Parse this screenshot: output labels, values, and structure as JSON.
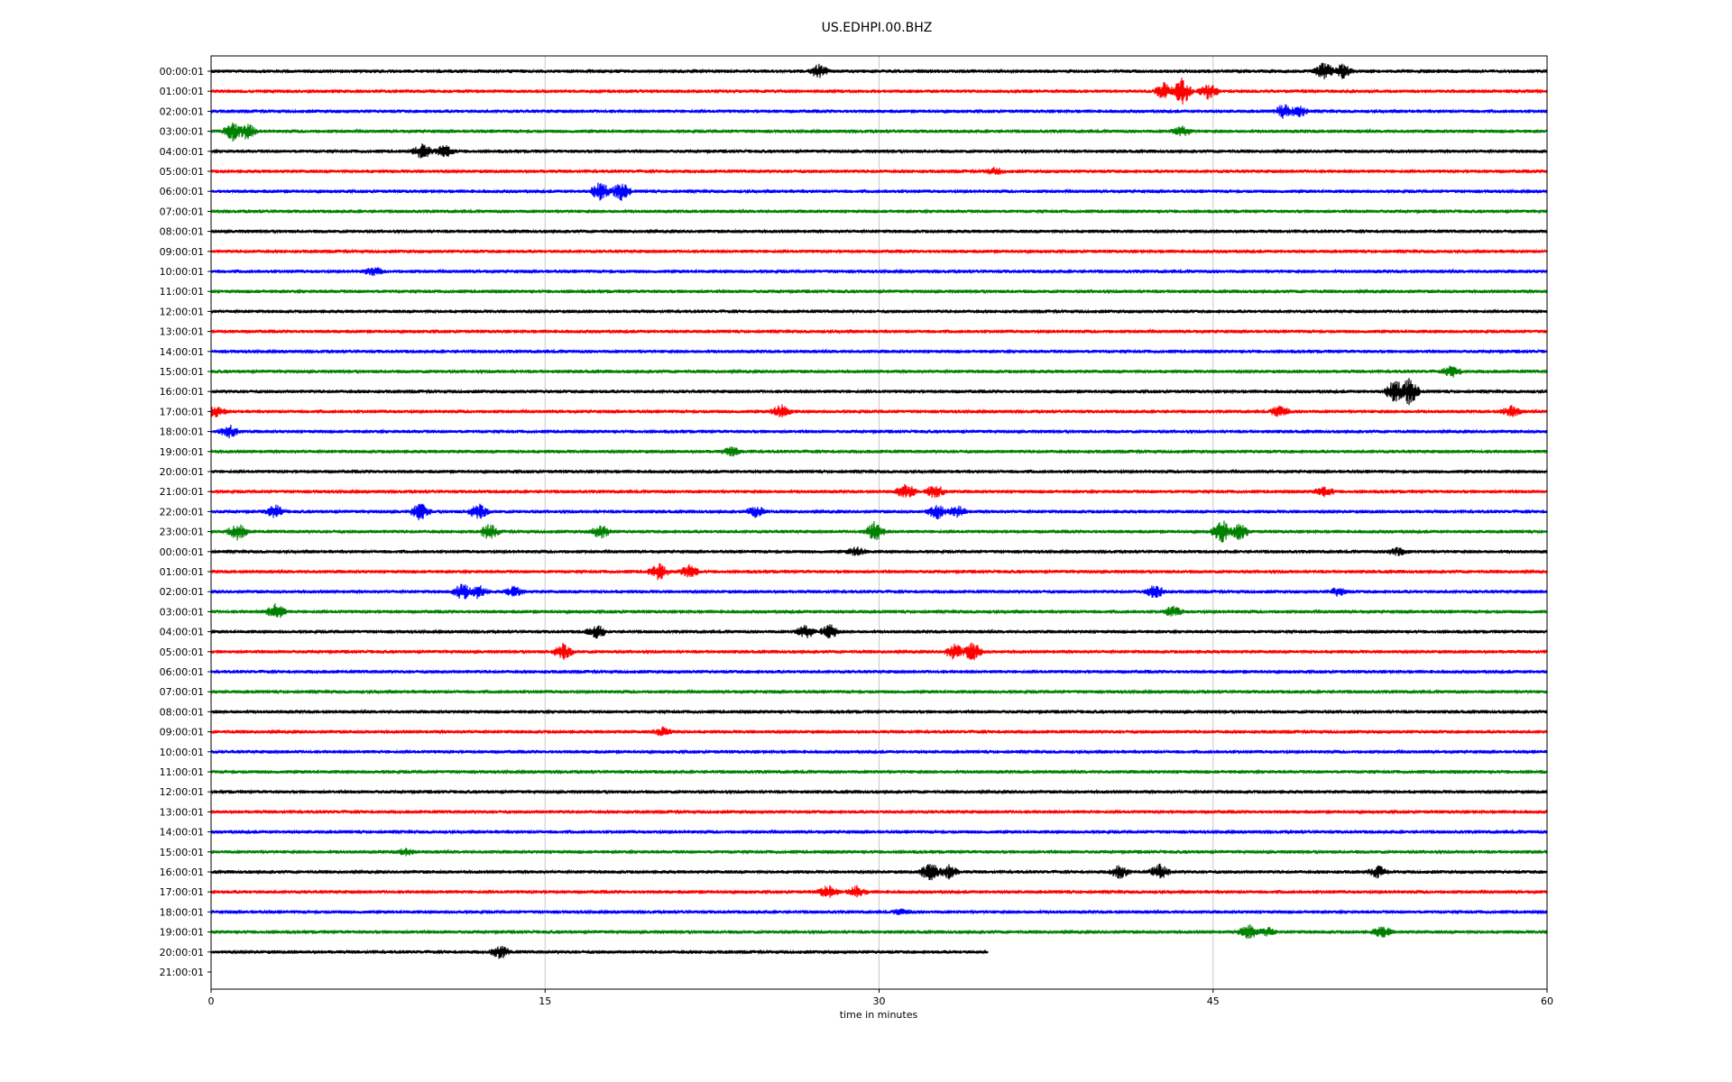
{
  "chart_data": {
    "type": "line",
    "title": "US.EDHPI.00.BHZ",
    "xlabel": "time in minutes",
    "xlim": [
      0,
      60
    ],
    "xticks": [
      "0",
      "15",
      "30",
      "45",
      "60"
    ],
    "xtick_values": [
      0,
      15,
      30,
      45,
      60
    ],
    "vertical_grid_minutes": [
      15,
      30,
      45
    ],
    "grid": "vertical only",
    "color_cycle": [
      "#000000",
      "#ff0000",
      "#0000ff",
      "#008000"
    ],
    "rows": [
      {
        "label": "00:00:01",
        "end_minute": 60,
        "events": [
          [
            27.3,
            1.6
          ],
          [
            50,
            2.2
          ],
          [
            50.8,
            1.8
          ]
        ]
      },
      {
        "label": "01:00:01",
        "end_minute": 60,
        "events": [
          [
            42.8,
            2.2
          ],
          [
            43.6,
            3.5
          ],
          [
            44.8,
            2.0
          ]
        ]
      },
      {
        "label": "02:00:01",
        "end_minute": 60,
        "events": [
          [
            48.2,
            1.8
          ],
          [
            48.8,
            1.5
          ]
        ]
      },
      {
        "label": "03:00:01",
        "end_minute": 60,
        "events": [
          [
            1.0,
            2.4
          ],
          [
            1.6,
            2.0
          ],
          [
            43.6,
            1.2
          ]
        ]
      },
      {
        "label": "04:00:01",
        "end_minute": 60,
        "events": [
          [
            9.5,
            1.8
          ],
          [
            10.5,
            1.6
          ]
        ]
      },
      {
        "label": "05:00:01",
        "end_minute": 60,
        "events": [
          [
            35.2,
            0.8
          ]
        ]
      },
      {
        "label": "06:00:01",
        "end_minute": 60,
        "events": [
          [
            17.5,
            2.4
          ],
          [
            18.4,
            2.2
          ]
        ]
      },
      {
        "label": "07:00:01",
        "end_minute": 60,
        "events": []
      },
      {
        "label": "08:00:01",
        "end_minute": 60,
        "events": []
      },
      {
        "label": "09:00:01",
        "end_minute": 60,
        "events": []
      },
      {
        "label": "10:00:01",
        "end_minute": 60,
        "events": [
          [
            7.3,
            1.0
          ]
        ]
      },
      {
        "label": "11:00:01",
        "end_minute": 60,
        "events": []
      },
      {
        "label": "12:00:01",
        "end_minute": 60,
        "events": []
      },
      {
        "label": "13:00:01",
        "end_minute": 60,
        "events": []
      },
      {
        "label": "14:00:01",
        "end_minute": 60,
        "events": []
      },
      {
        "label": "15:00:01",
        "end_minute": 60,
        "events": [
          [
            55.7,
            1.4
          ]
        ]
      },
      {
        "label": "16:00:01",
        "end_minute": 60,
        "events": [
          [
            53.2,
            3.2
          ],
          [
            53.8,
            3.5
          ]
        ]
      },
      {
        "label": "17:00:01",
        "end_minute": 60,
        "events": [
          [
            0.2,
            1.6
          ],
          [
            25.6,
            1.6
          ],
          [
            48.0,
            1.4
          ],
          [
            58.4,
            1.4
          ]
        ]
      },
      {
        "label": "18:00:01",
        "end_minute": 60,
        "events": [
          [
            0.8,
            1.6
          ]
        ]
      },
      {
        "label": "19:00:01",
        "end_minute": 60,
        "events": [
          [
            23.4,
            1.0
          ]
        ]
      },
      {
        "label": "20:00:01",
        "end_minute": 60,
        "events": []
      },
      {
        "label": "21:00:01",
        "end_minute": 60,
        "events": [
          [
            31.2,
            2.0
          ],
          [
            32.5,
            1.8
          ],
          [
            50.0,
            1.2
          ]
        ]
      },
      {
        "label": "22:00:01",
        "end_minute": 60,
        "events": [
          [
            2.9,
            1.6
          ],
          [
            9.4,
            2.2
          ],
          [
            12.0,
            2.0
          ],
          [
            24.5,
            1.4
          ],
          [
            32.6,
            1.8
          ],
          [
            33.5,
            1.4
          ]
        ]
      },
      {
        "label": "23:00:01",
        "end_minute": 60,
        "events": [
          [
            1.2,
            2.0
          ],
          [
            12.5,
            2.0
          ],
          [
            17.5,
            1.6
          ],
          [
            29.8,
            2.4
          ],
          [
            45.4,
            3.0
          ],
          [
            46.2,
            2.0
          ]
        ]
      },
      {
        "label": "00:00:01",
        "end_minute": 60,
        "events": [
          [
            29.0,
            1.0
          ],
          [
            53.3,
            1.0
          ]
        ]
      },
      {
        "label": "01:00:01",
        "end_minute": 60,
        "events": [
          [
            20.1,
            2.0
          ],
          [
            21.5,
            1.6
          ]
        ]
      },
      {
        "label": "02:00:01",
        "end_minute": 60,
        "events": [
          [
            11.3,
            2.0
          ],
          [
            12.0,
            1.6
          ],
          [
            13.6,
            1.2
          ],
          [
            42.4,
            1.6
          ],
          [
            50.6,
            1.0
          ]
        ]
      },
      {
        "label": "03:00:01",
        "end_minute": 60,
        "events": [
          [
            2.9,
            2.0
          ],
          [
            43.2,
            1.2
          ]
        ]
      },
      {
        "label": "04:00:01",
        "end_minute": 60,
        "events": [
          [
            17.3,
            1.8
          ],
          [
            26.7,
            1.6
          ],
          [
            27.8,
            1.8
          ]
        ]
      },
      {
        "label": "05:00:01",
        "end_minute": 60,
        "events": [
          [
            15.8,
            2.0
          ],
          [
            33.4,
            2.0
          ],
          [
            34.2,
            2.2
          ]
        ]
      },
      {
        "label": "06:00:01",
        "end_minute": 60,
        "events": []
      },
      {
        "label": "07:00:01",
        "end_minute": 60,
        "events": []
      },
      {
        "label": "08:00:01",
        "end_minute": 60,
        "events": []
      },
      {
        "label": "09:00:01",
        "end_minute": 60,
        "events": [
          [
            20.3,
            1.0
          ]
        ]
      },
      {
        "label": "10:00:01",
        "end_minute": 60,
        "events": []
      },
      {
        "label": "11:00:01",
        "end_minute": 60,
        "events": []
      },
      {
        "label": "12:00:01",
        "end_minute": 60,
        "events": []
      },
      {
        "label": "13:00:01",
        "end_minute": 60,
        "events": []
      },
      {
        "label": "14:00:01",
        "end_minute": 60,
        "events": []
      },
      {
        "label": "15:00:01",
        "end_minute": 60,
        "events": [
          [
            8.7,
            0.8
          ]
        ]
      },
      {
        "label": "16:00:01",
        "end_minute": 60,
        "events": [
          [
            32.3,
            2.4
          ],
          [
            33.1,
            1.8
          ],
          [
            40.8,
            1.6
          ],
          [
            42.6,
            1.8
          ],
          [
            52.4,
            1.4
          ]
        ]
      },
      {
        "label": "17:00:01",
        "end_minute": 60,
        "events": [
          [
            27.7,
            1.6
          ],
          [
            29.0,
            1.4
          ]
        ]
      },
      {
        "label": "18:00:01",
        "end_minute": 60,
        "events": [
          [
            31.0,
            0.6
          ]
        ]
      },
      {
        "label": "19:00:01",
        "end_minute": 60,
        "events": [
          [
            46.6,
            1.8
          ],
          [
            47.4,
            1.2
          ],
          [
            52.6,
            1.4
          ]
        ]
      },
      {
        "label": "20:00:01",
        "end_minute": 34.9,
        "events": [
          [
            13.0,
            1.6
          ]
        ]
      },
      {
        "label": "21:00:01",
        "end_minute": 0,
        "events": []
      }
    ]
  }
}
